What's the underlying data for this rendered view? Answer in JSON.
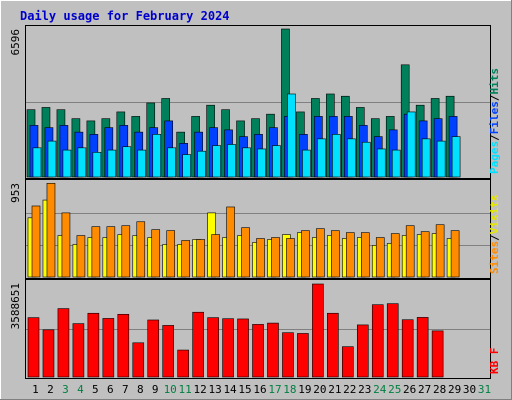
{
  "title": "Daily usage for February 2024",
  "panels": {
    "top": {
      "axis_max_label": "6596",
      "right_label": [
        "Pages",
        "/",
        "Files",
        "/",
        "Hits"
      ]
    },
    "middle": {
      "axis_max_label": "953",
      "right_label": [
        "Sites",
        "/",
        "Visits"
      ]
    },
    "bottom": {
      "axis_max_label": "3588651",
      "right_label": [
        "KB F"
      ]
    }
  },
  "colors": {
    "background": "#c0c0c0",
    "title": "#0000cc",
    "hits": "#00805a",
    "files": "#0040ff",
    "pages": "#00e0ff",
    "visits": "#ffff00",
    "sites": "#ff8c00",
    "kbytes": "#ff0000",
    "weekend_label": "#008040",
    "gridline": "#808080"
  },
  "chart_data": [
    {
      "type": "bar",
      "title": "Daily usage for February 2024",
      "categories": [
        "1",
        "2",
        "3",
        "4",
        "5",
        "6",
        "7",
        "8",
        "9",
        "10",
        "11",
        "12",
        "13",
        "14",
        "15",
        "16",
        "17",
        "18",
        "19",
        "20",
        "21",
        "22",
        "23",
        "24",
        "25",
        "26",
        "27",
        "28",
        "29",
        "30",
        "31"
      ],
      "weekend_categories": [
        "3",
        "4",
        "10",
        "11",
        "17",
        "18",
        "24",
        "25",
        "31"
      ],
      "ylim": [
        0,
        6596
      ],
      "y_max_label": "6596",
      "series": [
        {
          "name": "Hits",
          "values": [
            3000,
            3100,
            3000,
            2600,
            2500,
            2600,
            2900,
            2700,
            3300,
            3500,
            2000,
            2700,
            3200,
            3000,
            2500,
            2600,
            2800,
            6596,
            2900,
            3500,
            3700,
            3600,
            3100,
            2600,
            2700,
            5000,
            3200,
            3500,
            3600,
            0,
            0
          ]
        },
        {
          "name": "Files",
          "values": [
            2300,
            2200,
            2300,
            2000,
            1900,
            2200,
            2300,
            2000,
            2200,
            2500,
            1500,
            2000,
            2200,
            2100,
            1800,
            1900,
            2200,
            2700,
            1900,
            2700,
            2700,
            2700,
            2300,
            1800,
            2100,
            2800,
            2500,
            2600,
            2700,
            0,
            0
          ]
        },
        {
          "name": "Pages",
          "values": [
            1300,
            1600,
            1200,
            1300,
            1100,
            1200,
            1350,
            1200,
            1900,
            1300,
            1000,
            1150,
            1400,
            1450,
            1300,
            1250,
            1400,
            3700,
            1200,
            1700,
            1900,
            1700,
            1550,
            1250,
            1200,
            2900,
            1700,
            1600,
            1800,
            0,
            0
          ]
        }
      ]
    },
    {
      "type": "bar",
      "categories": [
        "1",
        "2",
        "3",
        "4",
        "5",
        "6",
        "7",
        "8",
        "9",
        "10",
        "11",
        "12",
        "13",
        "14",
        "15",
        "16",
        "17",
        "18",
        "19",
        "20",
        "21",
        "22",
        "23",
        "24",
        "25",
        "26",
        "27",
        "28",
        "29",
        "30",
        "31"
      ],
      "ylim": [
        0,
        953
      ],
      "y_max_label": "953",
      "series": [
        {
          "name": "Visits",
          "values": [
            600,
            780,
            420,
            330,
            400,
            400,
            430,
            420,
            400,
            330,
            330,
            380,
            650,
            400,
            420,
            350,
            380,
            430,
            450,
            400,
            420,
            390,
            400,
            320,
            340,
            420,
            430,
            440,
            390,
            0,
            0
          ]
        },
        {
          "name": "Sites",
          "values": [
            720,
            950,
            650,
            420,
            510,
            510,
            520,
            560,
            480,
            470,
            370,
            380,
            430,
            710,
            500,
            390,
            400,
            390,
            470,
            490,
            470,
            450,
            450,
            400,
            440,
            520,
            460,
            530,
            470,
            0,
            0
          ]
        }
      ]
    },
    {
      "type": "bar",
      "categories": [
        "1",
        "2",
        "3",
        "4",
        "5",
        "6",
        "7",
        "8",
        "9",
        "10",
        "11",
        "12",
        "13",
        "14",
        "15",
        "16",
        "17",
        "18",
        "19",
        "20",
        "21",
        "22",
        "23",
        "24",
        "25",
        "26",
        "27",
        "28",
        "29",
        "30",
        "31"
      ],
      "ylim": [
        0,
        3588651
      ],
      "y_max_label": "3588651",
      "series": [
        {
          "name": "KB F",
          "values": [
            2290000,
            1820000,
            2640000,
            2060000,
            2460000,
            2260000,
            2420000,
            1320000,
            2200000,
            1990000,
            1040000,
            2500000,
            2290000,
            2250000,
            2240000,
            2030000,
            2080000,
            1710000,
            1680000,
            3588651,
            2460000,
            1170000,
            2010000,
            2790000,
            2830000,
            2210000,
            2300000,
            1780000,
            0,
            0,
            0
          ]
        }
      ]
    }
  ]
}
